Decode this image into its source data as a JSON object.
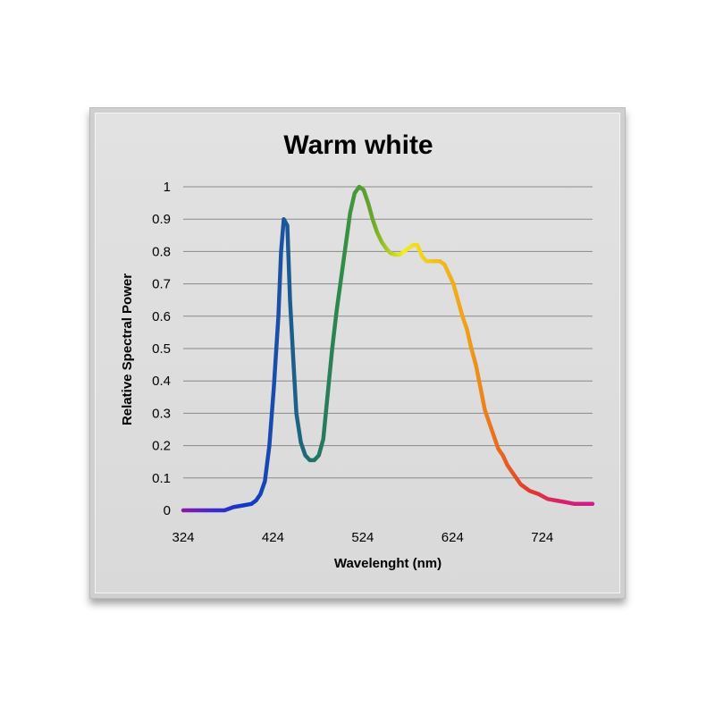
{
  "chart_data": {
    "type": "line",
    "title": "Warm white",
    "xlabel": "Wavelenght (nm)",
    "ylabel": "Relative Spectral Power",
    "xlim": [
      324,
      780
    ],
    "ylim": [
      0,
      1
    ],
    "x_ticks": [
      "324",
      "424",
      "524",
      "624",
      "724"
    ],
    "y_ticks": [
      "0",
      "0.1",
      "0.2",
      "0.3",
      "0.4",
      "0.5",
      "0.6",
      "0.7",
      "0.8",
      "0.9",
      "1"
    ],
    "grid": true,
    "legend": "none",
    "line_color_gradient": [
      "#8a1aa8",
      "#3a2ad0",
      "#1038c8",
      "#1b4fa8",
      "#1f6e6e",
      "#2e8a4a",
      "#6aa62a",
      "#f1ee20",
      "#f0c020",
      "#f0a018",
      "#e86a20",
      "#e03a30",
      "#d82070",
      "#cc1e8c"
    ],
    "series": [
      {
        "x": [
          324,
          350,
          370,
          380,
          390,
          400,
          405,
          410,
          415,
          420,
          425,
          430,
          433,
          436,
          440,
          443,
          447,
          450,
          455,
          460,
          465,
          470,
          475,
          480,
          485,
          490,
          495,
          500,
          505,
          510,
          515,
          520,
          525,
          530,
          535,
          540,
          545,
          550,
          555,
          560,
          565,
          570,
          575,
          580,
          585,
          590,
          595,
          600,
          605,
          610,
          615,
          620,
          625,
          630,
          635,
          640,
          645,
          650,
          655,
          660,
          665,
          670,
          675,
          680,
          685,
          690,
          695,
          700,
          710,
          720,
          730,
          740,
          750,
          760,
          770,
          780
        ],
        "y": [
          0.0,
          0.0,
          0.0,
          0.01,
          0.015,
          0.02,
          0.03,
          0.05,
          0.09,
          0.2,
          0.38,
          0.6,
          0.8,
          0.9,
          0.88,
          0.65,
          0.45,
          0.3,
          0.21,
          0.17,
          0.155,
          0.155,
          0.17,
          0.22,
          0.36,
          0.5,
          0.62,
          0.72,
          0.82,
          0.92,
          0.98,
          1.0,
          0.99,
          0.95,
          0.9,
          0.86,
          0.83,
          0.81,
          0.795,
          0.79,
          0.79,
          0.8,
          0.81,
          0.82,
          0.82,
          0.785,
          0.77,
          0.77,
          0.77,
          0.77,
          0.76,
          0.73,
          0.7,
          0.65,
          0.6,
          0.56,
          0.5,
          0.45,
          0.38,
          0.31,
          0.27,
          0.23,
          0.19,
          0.17,
          0.14,
          0.12,
          0.1,
          0.08,
          0.06,
          0.05,
          0.035,
          0.03,
          0.025,
          0.02,
          0.02,
          0.02
        ]
      }
    ]
  }
}
